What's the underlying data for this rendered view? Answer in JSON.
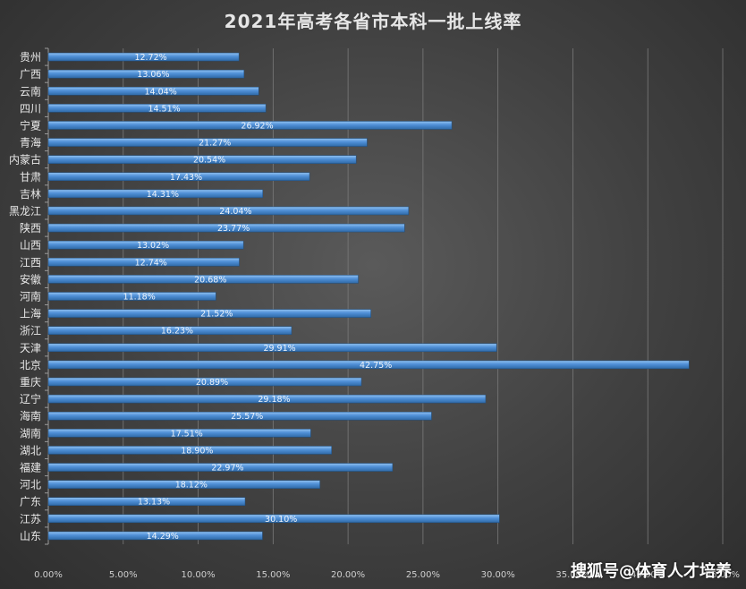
{
  "chart_data": {
    "type": "bar",
    "orientation": "horizontal",
    "title": "2021年高考各省市本科一批上线率",
    "xlabel": "",
    "ylabel": "",
    "xlim": [
      0,
      45
    ],
    "x_ticks": [
      "0.00%",
      "5.00%",
      "10.00%",
      "15.00%",
      "20.00%",
      "25.00%",
      "30.00%",
      "35.00%",
      "40.00%",
      "45.00%"
    ],
    "grid": true,
    "bar_color": "#4f8fd6",
    "categories": [
      "贵州",
      "广西",
      "云南",
      "四川",
      "宁夏",
      "青海",
      "内蒙古",
      "甘肃",
      "吉林",
      "黑龙江",
      "陕西",
      "山西",
      "江西",
      "安徽",
      "河南",
      "上海",
      "浙江",
      "天津",
      "北京",
      "重庆",
      "辽宁",
      "海南",
      "湖南",
      "湖北",
      "福建",
      "河北",
      "广东",
      "江苏",
      "山东"
    ],
    "values": [
      12.72,
      13.06,
      14.04,
      14.51,
      26.92,
      21.27,
      20.54,
      17.43,
      14.31,
      24.04,
      23.77,
      13.02,
      12.74,
      20.68,
      11.18,
      21.52,
      16.23,
      29.91,
      42.75,
      20.89,
      29.18,
      25.57,
      17.51,
      18.9,
      22.97,
      18.12,
      13.13,
      30.1,
      14.29
    ],
    "data_labels": [
      "12.72%",
      "13.06%",
      "14.04%",
      "14.51%",
      "26.92%",
      "21.27%",
      "20.54%",
      "17.43%",
      "14.31%",
      "24.04%",
      "23.77%",
      "13.02%",
      "12.74%",
      "20.68%",
      "11.18%",
      "21.52%",
      "16.23%",
      "29.91%",
      "42.75%",
      "20.89%",
      "29.18%",
      "25.57%",
      "17.51%",
      "18.90%",
      "22.97%",
      "18.12%",
      "13.13%",
      "30.10%",
      "14.29%"
    ]
  },
  "watermark": "搜狐号@体育人才培养"
}
